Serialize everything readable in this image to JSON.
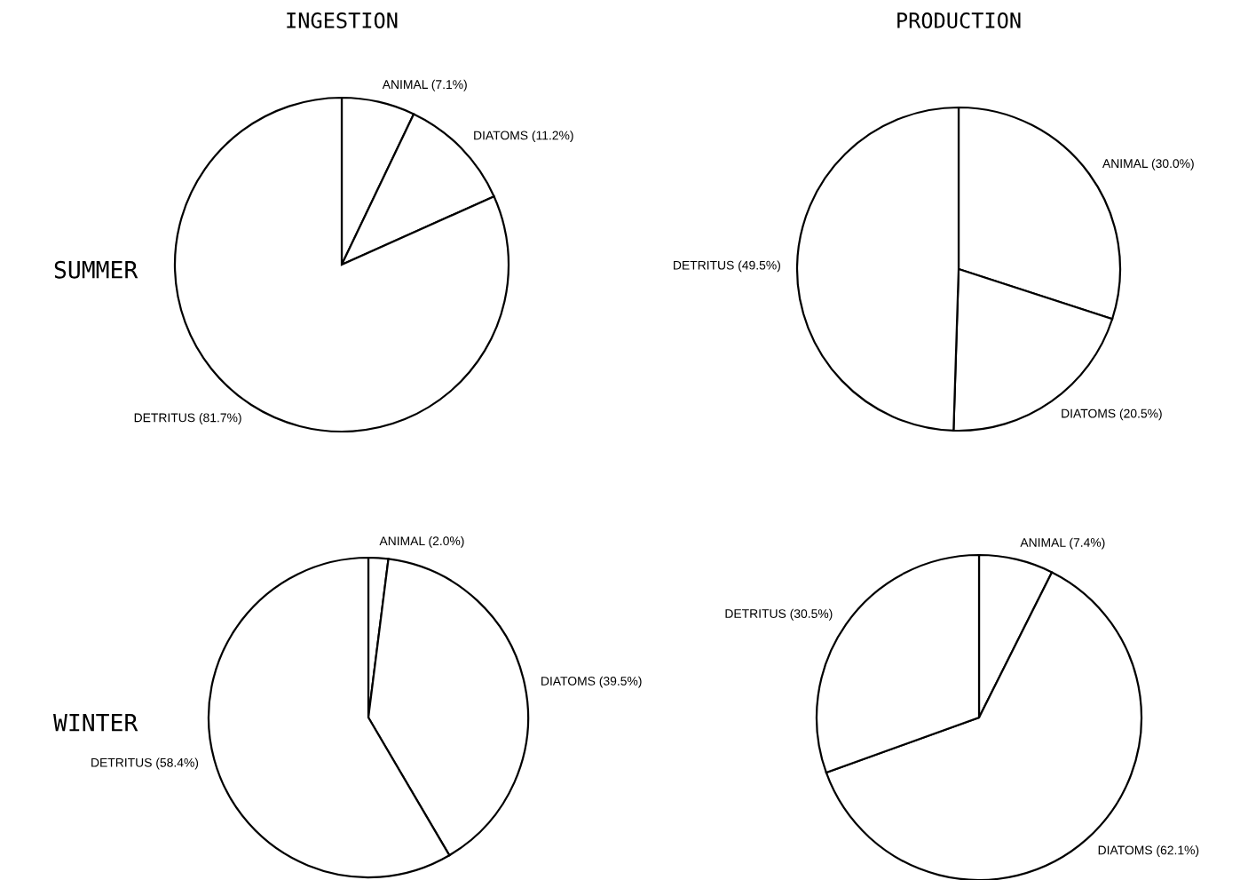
{
  "chart_data": [
    {
      "type": "pie",
      "title": "INGESTION",
      "ylabel": "SUMMER",
      "categories": [
        "ANIMAL",
        "DIATOMS",
        "DETRITUS"
      ],
      "values": [
        7.1,
        11.2,
        81.7
      ],
      "value_labels": [
        "(7.1%)",
        "(11.2%)",
        "(81.7%)"
      ],
      "colors": [
        "#ffffff",
        "#ffffff",
        "#ffffff"
      ]
    },
    {
      "type": "pie",
      "title": "PRODUCTION",
      "categories": [
        "ANIMAL",
        "DIATOMS",
        "DETRITUS"
      ],
      "values": [
        30.0,
        20.5,
        49.5
      ],
      "value_labels": [
        "(30.0%)",
        "(20.5%)",
        "(49.5%)"
      ],
      "colors": [
        "#ffffff",
        "#ffffff",
        "#ffffff"
      ]
    },
    {
      "type": "pie",
      "ylabel": "WINTER",
      "categories": [
        "ANIMAL",
        "DIATOMS",
        "DETRITUS"
      ],
      "values": [
        2.0,
        39.5,
        58.4
      ],
      "value_labels": [
        "(2.0%)",
        "(39.5%)",
        "(58.4%)"
      ],
      "colors": [
        "#ffffff",
        "#ffffff",
        "#ffffff"
      ]
    },
    {
      "type": "pie",
      "categories": [
        "ANIMAL",
        "DIATOMS",
        "DETRITUS"
      ],
      "values": [
        7.4,
        62.1,
        30.5
      ],
      "value_labels": [
        "(7.4%)",
        "(62.1%)",
        "(30.5%)"
      ],
      "colors": [
        "#ffffff",
        "#ffffff",
        "#ffffff"
      ]
    }
  ]
}
